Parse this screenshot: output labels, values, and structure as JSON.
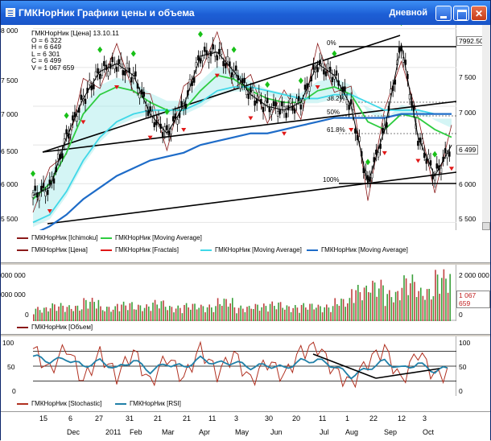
{
  "window": {
    "title": "ГМКНорНик Графики цены и объема",
    "mode": "Дневной",
    "buttons": {
      "minimize": "minimize",
      "maximize": "maximize",
      "close": "close"
    }
  },
  "colors": {
    "price": "#000000",
    "ichimoku": "#8b1a1a",
    "ma_short": "#2ecc40",
    "ma_mid": "#40d8e8",
    "ma_long": "#1e6cc8",
    "fractal_up": "#18c018",
    "fractal_down": "#e01818",
    "volume": "#3aa03a",
    "stochastic": "#b03020",
    "rsi": "#2080a8"
  },
  "info": {
    "header": "ГМКНорНик [Цена] 13.10.11",
    "open": "O = 6 322",
    "high": "H = 6 649",
    "low": "L = 6 301",
    "close": "C = 6 499",
    "volume": "V = 1 067 659"
  },
  "price_axis": {
    "left": [
      "8 000",
      "7 500",
      "7 000",
      "6 500",
      "6 000",
      "5 500"
    ],
    "right": [
      "7 500",
      "7 000",
      "6 000",
      "5 500"
    ],
    "current_tag": "7992.50",
    "last_tag": "6 499"
  },
  "fib": {
    "f0": "0%",
    "f382": "38.2%",
    "f50": "50%",
    "f618": "61.8%",
    "f100": "100%"
  },
  "legend_price": {
    "ichimoku": "ГМКНорНик [Ichimoku]",
    "ma1": "ГМКНорНик [Moving Average]",
    "price": "ГМКНорНик [Цена]",
    "fractals": "ГМКНорНик [Fractals]",
    "ma2": "ГМКНорНик [Moving Average]",
    "ma3": "ГМКНорНик [Moving Average]"
  },
  "volume_axis": {
    "left_top": "000 000",
    "left_mid": "000 000",
    "left_zero": "0",
    "right_top": "2 000 000",
    "right_tag": "1 067 659",
    "right_zero": "0"
  },
  "legend_volume": {
    "volume": "ГМКНорНик [Объем]"
  },
  "osc_axis": {
    "left": [
      "100",
      "50",
      "0"
    ],
    "right": [
      "100",
      "50",
      "0"
    ]
  },
  "legend_osc": {
    "stochastic": "ГМКНорНик [Stochastic]",
    "rsi": "ГМКНорНик [RSI]"
  },
  "date_axis": {
    "days": [
      "15",
      "6",
      "27",
      "31",
      "21",
      "21",
      "11",
      "3",
      "30",
      "20",
      "11",
      "1",
      "22",
      "12",
      "3"
    ],
    "months": [
      "Dec",
      "2011",
      "Feb",
      "Mar",
      "Apr",
      "May",
      "Jun",
      "Jul",
      "Aug",
      "Sep",
      "Oct"
    ]
  },
  "chart_data": [
    {
      "type": "line",
      "title": "",
      "xlabel": "",
      "ylabel": "",
      "ylim": [
        5400,
        8050
      ],
      "grid": true,
      "x_range": [
        "2010-12-01",
        "2011-10-13"
      ],
      "series": [
        {
          "name": "ГМКНорНик [Цена]",
          "values": [
            5850,
            5950,
            6600,
            7100,
            7450,
            7550,
            7400,
            6900,
            6650,
            7000,
            7650,
            7700,
            7450,
            7150,
            7000,
            6950,
            7050,
            7550,
            7400,
            7000,
            6000,
            6700,
            7800,
            6600,
            6100,
            6499
          ]
        },
        {
          "name": "ГМКНорНик [Moving Average]",
          "values": [
            5800,
            6000,
            6400,
            6900,
            7150,
            7250,
            7200,
            7050,
            6950,
            6950,
            7200,
            7400,
            7350,
            7200,
            7100,
            7050,
            7050,
            7200,
            7250,
            7150,
            6800,
            6700,
            6900,
            6850,
            6700,
            6600
          ]
        },
        {
          "name": "ГМКНорНик [Moving Average]",
          "values": [
            5500,
            5600,
            5900,
            6300,
            6600,
            6800,
            6900,
            6950,
            6950,
            6950,
            7050,
            7200,
            7250,
            7250,
            7200,
            7150,
            7100,
            7100,
            7150,
            7150,
            7050,
            6950,
            6950,
            6950,
            6900,
            6900
          ]
        },
        {
          "name": "ГМКНорНик [Moving Average]",
          "values": [
            5350,
            5450,
            5600,
            5800,
            5950,
            6100,
            6200,
            6300,
            6350,
            6400,
            6500,
            6550,
            6600,
            6650,
            6650,
            6700,
            6750,
            6800,
            6850,
            6850,
            6850,
            6850,
            6900,
            6900,
            6900,
            6900
          ]
        }
      ]
    },
    {
      "type": "bar",
      "title": "",
      "ylim": [
        0,
        2500000
      ],
      "series": [
        {
          "name": "ГМКНорНик [Объем]",
          "values": [
            550000,
            700000,
            620000,
            900000,
            580000,
            750000,
            650000,
            820000,
            600000,
            700000,
            640000,
            900000,
            600000,
            680000,
            760000,
            620000,
            700000,
            640000,
            900000,
            1400000,
            1600000,
            1200000,
            1800000,
            1300000,
            2000000,
            1067659
          ]
        }
      ]
    },
    {
      "type": "line",
      "title": "",
      "ylim": [
        0,
        100
      ],
      "series": [
        {
          "name": "ГМКНорНик [Stochastic]",
          "values": [
            85,
            40,
            90,
            20,
            75,
            30,
            80,
            15,
            70,
            25,
            85,
            35,
            75,
            20,
            60,
            30,
            80,
            90,
            40,
            15,
            60,
            85,
            20,
            80,
            30,
            40
          ]
        },
        {
          "name": "ГМКНорНик [RSI]",
          "values": [
            70,
            60,
            65,
            50,
            60,
            45,
            62,
            40,
            55,
            48,
            65,
            55,
            58,
            48,
            52,
            46,
            60,
            62,
            50,
            30,
            45,
            60,
            45,
            55,
            40,
            48
          ]
        }
      ]
    }
  ]
}
